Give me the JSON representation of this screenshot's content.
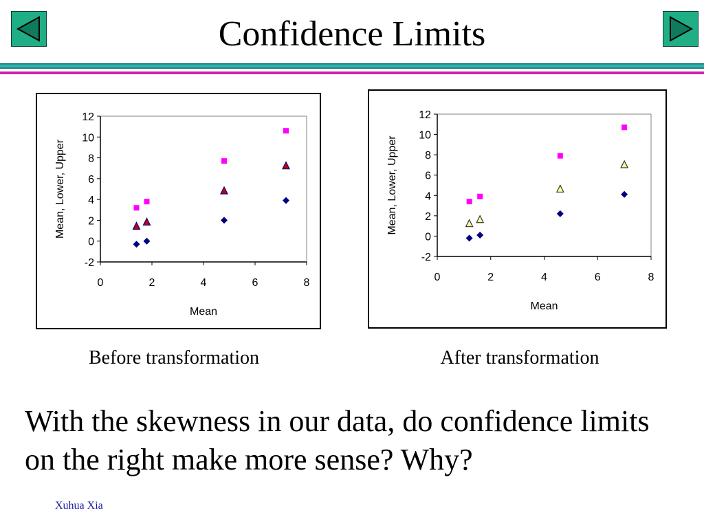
{
  "title": "Confidence Limits",
  "nav": {
    "prev_icon": "triangle-left-icon",
    "next_icon": "triangle-right-icon"
  },
  "colors": {
    "nav_fill": "#1fae86",
    "rule_teal": "#2aa39a",
    "rule_magenta": "#cc22aa",
    "mean_color": "#000080",
    "upper_color": "#ff00ff",
    "lower_fill_before": "#cc0000",
    "lower_fill_after": "#ffff99"
  },
  "captions": {
    "before": "Before transformation",
    "after": "After transformation"
  },
  "question": "With the skewness in our data, do confidence limits on the right make more sense? Why?",
  "author": "Xuhua Xia",
  "chart_data": [
    {
      "type": "scatter",
      "xlabel": "Mean",
      "ylabel": "Mean, Lower, Upper",
      "xlim": [
        0,
        8
      ],
      "ylim": [
        -2,
        12
      ],
      "xticks": [
        0,
        2,
        4,
        6,
        8
      ],
      "yticks": [
        -2,
        0,
        2,
        4,
        6,
        8,
        10,
        12
      ],
      "grid": false,
      "series": [
        {
          "marker": "diamond",
          "x": [
            1.4,
            1.8,
            4.8,
            7.2
          ],
          "y": [
            -0.3,
            0.0,
            2.0,
            3.9
          ]
        },
        {
          "marker": "triangle",
          "x": [
            1.4,
            1.8,
            4.8,
            7.2
          ],
          "y": [
            1.4,
            1.8,
            4.8,
            7.2
          ]
        },
        {
          "marker": "square",
          "x": [
            1.4,
            1.8,
            4.8,
            7.2
          ],
          "y": [
            3.2,
            3.8,
            7.7,
            10.6
          ]
        }
      ]
    },
    {
      "type": "scatter",
      "xlabel": "Mean",
      "ylabel": "Mean, Lower, Upper",
      "xlim": [
        0,
        8
      ],
      "ylim": [
        -2,
        12
      ],
      "xticks": [
        0,
        2,
        4,
        6,
        8
      ],
      "yticks": [
        -2,
        0,
        2,
        4,
        6,
        8,
        10,
        12
      ],
      "grid": false,
      "series": [
        {
          "marker": "diamond",
          "x": [
            1.2,
            1.6,
            4.6,
            7.0
          ],
          "y": [
            -0.2,
            0.1,
            2.2,
            4.1
          ]
        },
        {
          "marker": "triangle",
          "x": [
            1.2,
            1.6,
            4.6,
            7.0
          ],
          "y": [
            1.2,
            1.6,
            4.6,
            7.0
          ]
        },
        {
          "marker": "square",
          "x": [
            1.2,
            1.6,
            4.6,
            7.0
          ],
          "y": [
            3.4,
            3.9,
            7.9,
            10.7
          ]
        }
      ]
    }
  ]
}
